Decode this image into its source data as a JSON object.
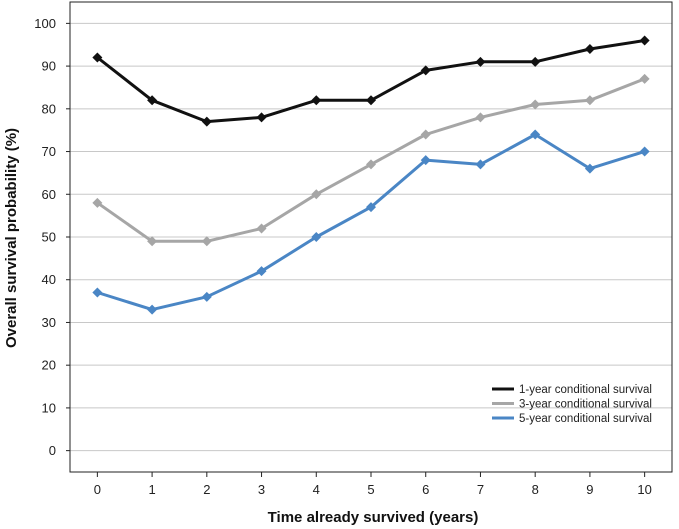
{
  "chart_data": {
    "type": "line",
    "title": "",
    "xlabel": "Time already survived (years)",
    "ylabel": "Overall survival probability (%)",
    "x": [
      0,
      1,
      2,
      3,
      4,
      5,
      6,
      7,
      8,
      9,
      10
    ],
    "xlim": [
      -0.5,
      10.5
    ],
    "ylim": [
      -5,
      105
    ],
    "yticks": [
      0,
      10,
      20,
      30,
      40,
      50,
      60,
      70,
      80,
      90,
      100
    ],
    "grid": "horizontal",
    "legend_position": "bottom-right",
    "series": [
      {
        "name": "1-year conditional survival",
        "color": "#111111",
        "values": [
          92,
          82,
          77,
          78,
          82,
          82,
          89,
          91,
          91,
          94,
          96
        ]
      },
      {
        "name": "3-year conditional survival",
        "color": "#a6a6a6",
        "values": [
          58,
          49,
          49,
          52,
          60,
          67,
          74,
          78,
          81,
          82,
          87
        ]
      },
      {
        "name": "5-year conditional survival",
        "color": "#4a86c5",
        "values": [
          37,
          33,
          36,
          42,
          50,
          57,
          68,
          67,
          74,
          66,
          70
        ]
      }
    ]
  }
}
